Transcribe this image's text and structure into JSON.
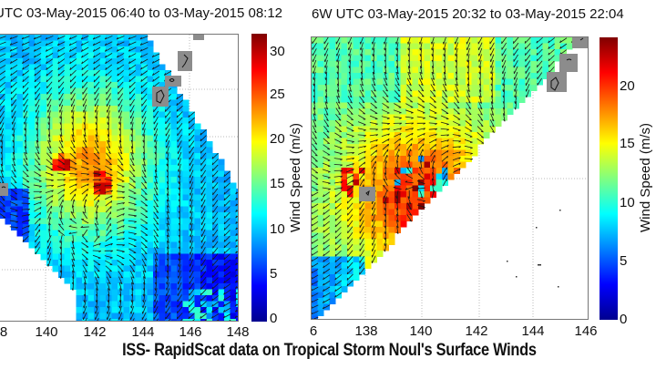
{
  "caption": "ISS- RapidScat data on Tropical Storm Noul's Surface Winds",
  "colors": {
    "jet": [
      "#00008f",
      "#0000ff",
      "#0080ff",
      "#00ffff",
      "#80ff80",
      "#ffff00",
      "#ff8000",
      "#ff0000",
      "#800000"
    ],
    "land": "#8c8c8c",
    "frame": "#777777",
    "grid": "#bbbbbb"
  },
  "chart_data": [
    {
      "type": "heatmap",
      "title": "UTC 03-May-2015 06:40 to 03-May-2015 08:12",
      "xlabel": "",
      "ylabel": "",
      "x_ticks": [
        "8",
        "140",
        "142",
        "144",
        "146",
        "148"
      ],
      "xlim": [
        137.8,
        148.2
      ],
      "colorbar": {
        "label": "Wind Speed (m/s)",
        "ticks": [
          "0",
          "5",
          "10",
          "15",
          "20",
          "25",
          "30"
        ],
        "range": [
          0,
          32
        ]
      },
      "overlay": "wind vectors (quiver)",
      "features": [
        "cyclonic circulation centered near 141.5E",
        "max winds ~30 m/s (dark red) near 140.7E",
        "land masks (Guam / Marianas islands) in gray near 145-146E"
      ],
      "grid": true
    },
    {
      "type": "heatmap",
      "title": "6W UTC 03-May-2015 20:32 to 03-May-2015 22:04",
      "xlabel": "",
      "ylabel": "",
      "x_ticks": [
        "6",
        "138",
        "140",
        "142",
        "144",
        "146"
      ],
      "xlim": [
        136.2,
        146.0
      ],
      "colorbar": {
        "label": "Wind Speed (m/s)",
        "ticks": [
          "0",
          "5",
          "10",
          "15",
          "20"
        ],
        "range": [
          0,
          24
        ]
      },
      "overlay": "wind vectors (quiver)",
      "features": [
        "closed cyclonic circulation centered near 140.5E",
        "max winds ~22 m/s (red) around the center",
        "swath edge diagonal, white no-data region bottom right",
        "land masks in gray near 138.3E and 145-146E"
      ],
      "grid": true
    }
  ],
  "panels": [
    {
      "title": "UTC 03-May-2015 06:40 to 03-May-2015 08:12",
      "cbar_label": "Wind Speed (m/s)",
      "cbar_ticks": [
        "0",
        "5",
        "10",
        "15",
        "20",
        "25",
        "30"
      ],
      "x_ticks": [
        "8",
        "140",
        "142",
        "144",
        "146",
        "148"
      ]
    },
    {
      "title": "6W UTC 03-May-2015 20:32 to 03-May-2015 22:04",
      "cbar_label": "Wind Speed (m/s)",
      "cbar_ticks": [
        "0",
        "5",
        "10",
        "15",
        "20"
      ],
      "x_ticks": [
        "6",
        "138",
        "140",
        "142",
        "144",
        "146"
      ]
    }
  ]
}
